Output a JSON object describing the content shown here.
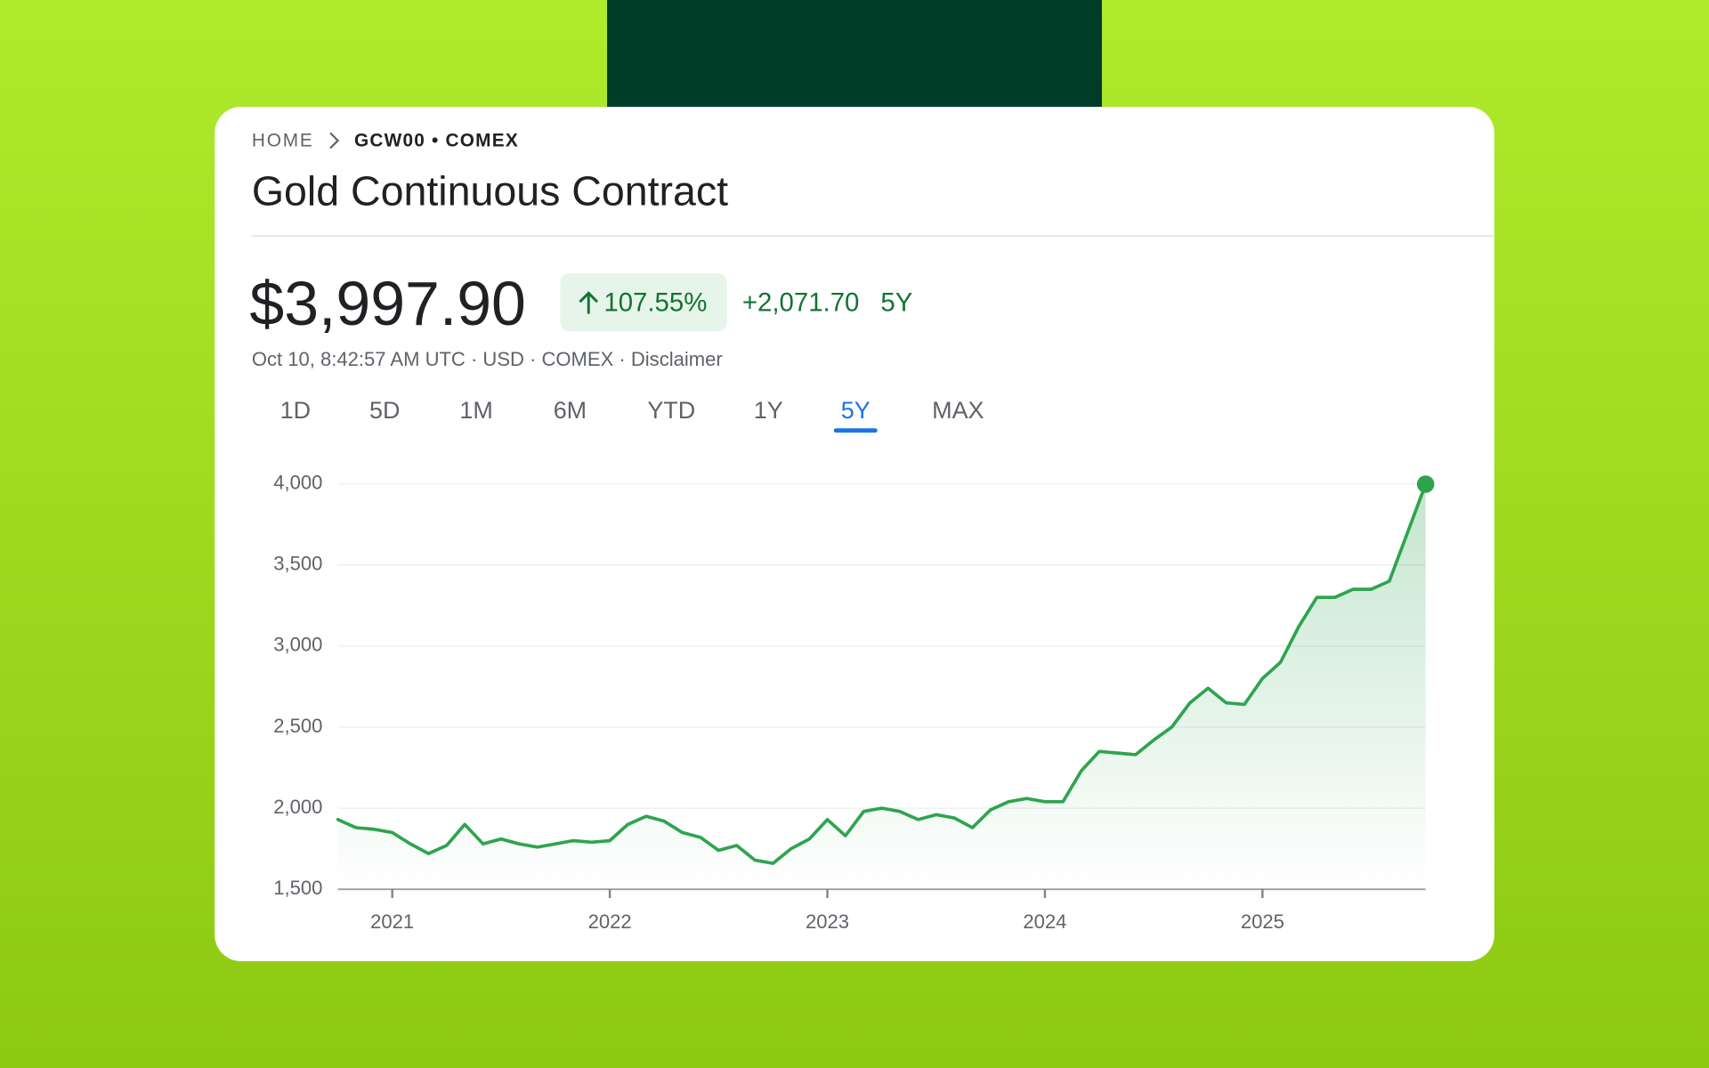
{
  "breadcrumb": {
    "home": "HOME",
    "current": "GCW00 • COMEX"
  },
  "title": "Gold Continuous Contract",
  "price": "$3,997.90",
  "change_percent": "107.55%",
  "change_value": "+2,071.70",
  "change_period": "5Y",
  "meta_line": "Oct 10, 8:42:57 AM UTC · USD · COMEX · Disclaimer",
  "tabs": [
    {
      "label": "1D"
    },
    {
      "label": "5D"
    },
    {
      "label": "1M"
    },
    {
      "label": "6M"
    },
    {
      "label": "YTD"
    },
    {
      "label": "1Y"
    },
    {
      "label": "5Y",
      "active": true
    },
    {
      "label": "MAX"
    }
  ],
  "chart_data": {
    "type": "line",
    "color": "#2ea44f",
    "x": [
      2020.75,
      2020.833,
      2020.917,
      2021,
      2021.083,
      2021.167,
      2021.25,
      2021.333,
      2021.417,
      2021.5,
      2021.583,
      2021.667,
      2021.75,
      2021.833,
      2021.917,
      2022,
      2022.083,
      2022.167,
      2022.25,
      2022.333,
      2022.417,
      2022.5,
      2022.583,
      2022.667,
      2022.75,
      2022.833,
      2022.917,
      2023,
      2023.083,
      2023.167,
      2023.25,
      2023.333,
      2023.417,
      2023.5,
      2023.583,
      2023.667,
      2023.75,
      2023.833,
      2023.917,
      2024,
      2024.083,
      2024.167,
      2024.25,
      2024.333,
      2024.417,
      2024.5,
      2024.583,
      2024.667,
      2024.75,
      2024.833,
      2024.917,
      2025,
      2025.083,
      2025.167,
      2025.25,
      2025.333,
      2025.417,
      2025.5,
      2025.583,
      2025.667,
      2025.75
    ],
    "values": [
      1930,
      1880,
      1870,
      1850,
      1780,
      1720,
      1770,
      1900,
      1780,
      1810,
      1780,
      1760,
      1780,
      1800,
      1790,
      1800,
      1900,
      1950,
      1920,
      1850,
      1820,
      1740,
      1770,
      1680,
      1660,
      1750,
      1810,
      1930,
      1830,
      1980,
      2000,
      1980,
      1930,
      1960,
      1940,
      1880,
      1990,
      2040,
      2060,
      2040,
      2040,
      2230,
      2350,
      2340,
      2330,
      2420,
      2500,
      2650,
      2740,
      2650,
      2640,
      2800,
      2900,
      3120,
      3300,
      3300,
      3350,
      3350,
      3400,
      3700,
      3997.9
    ],
    "xlim": [
      2020.75,
      2025.75
    ],
    "ylim": [
      1500,
      4000
    ],
    "xticks": [
      2021,
      2022,
      2023,
      2024,
      2025
    ],
    "yticks": [
      {
        "value": 1500,
        "label": "1,500"
      },
      {
        "value": 2000,
        "label": "2,000"
      },
      {
        "value": 2500,
        "label": "2,500"
      },
      {
        "value": 3000,
        "label": "3,000"
      },
      {
        "value": 3500,
        "label": "3,500"
      },
      {
        "value": 4000,
        "label": "4,000"
      }
    ],
    "grid": true
  }
}
